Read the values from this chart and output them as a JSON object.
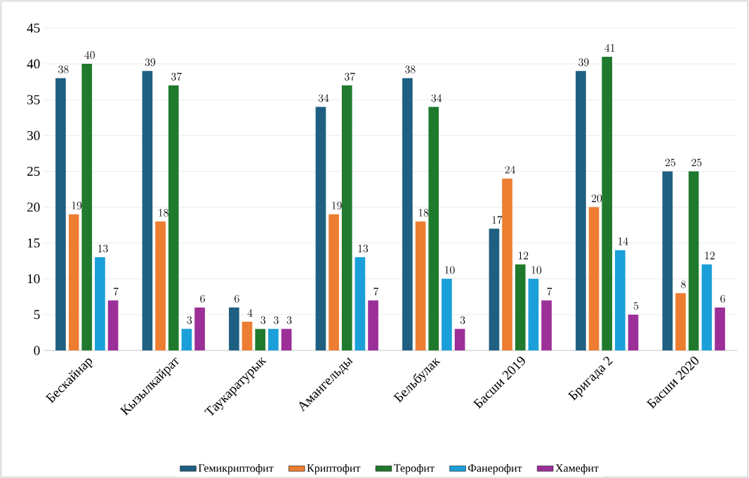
{
  "chart_data": {
    "type": "bar",
    "categories": [
      "Бескайнар",
      "Кызылкайрат",
      "Таукаратурык",
      "Амангельды",
      "Бельбулак",
      "Басши 2019",
      "Бригада 2",
      "Басши 2020"
    ],
    "series": [
      {
        "name": "Гемикриптофит",
        "color": "#1f5f82",
        "values": [
          38,
          39,
          6,
          34,
          38,
          17,
          39,
          25
        ]
      },
      {
        "name": "Криптофит",
        "color": "#ed7d31",
        "values": [
          19,
          18,
          4,
          19,
          18,
          24,
          20,
          8
        ]
      },
      {
        "name": "Терофит",
        "color": "#1f7a2e",
        "values": [
          40,
          37,
          3,
          37,
          34,
          12,
          41,
          25
        ]
      },
      {
        "name": "Фанерофит",
        "color": "#1b9fd8",
        "values": [
          13,
          3,
          3,
          13,
          10,
          10,
          14,
          12
        ]
      },
      {
        "name": "Хамефит",
        "color": "#9c2f98",
        "values": [
          7,
          6,
          3,
          7,
          3,
          7,
          5,
          6
        ]
      }
    ],
    "ylim": [
      0,
      45
    ],
    "yticks": [
      0,
      5,
      10,
      15,
      20,
      25,
      30,
      35,
      40,
      45
    ],
    "grid": "y",
    "legend": "bottom",
    "data_labels": true
  }
}
